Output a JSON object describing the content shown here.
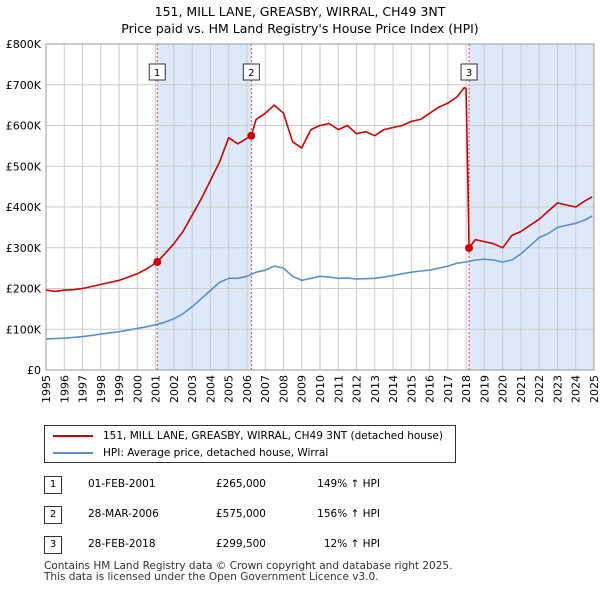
{
  "title_line1": "151, MILL LANE, GREASBY, WIRRAL, CH49 3NT",
  "title_line2": "Price paid vs. HM Land Registry's House Price Index (HPI)",
  "colors": {
    "property": "#cc0000",
    "hpi": "#5b8fcc",
    "shade": "#dde8f8",
    "grid": "#cccccc"
  },
  "chart_data": {
    "type": "line",
    "title": "Price paid vs. HM Land Registry's House Price Index (HPI)",
    "xlim": [
      1995,
      2025
    ],
    "ylim": [
      0,
      800000
    ],
    "x_ticks": [
      "1995",
      "1996",
      "1997",
      "1998",
      "1999",
      "2000",
      "2001",
      "2002",
      "2003",
      "2004",
      "2005",
      "2006",
      "2007",
      "2008",
      "2009",
      "2010",
      "2011",
      "2012",
      "2013",
      "2014",
      "2015",
      "2016",
      "2017",
      "2018",
      "2019",
      "2020",
      "2021",
      "2022",
      "2023",
      "2024",
      "2025"
    ],
    "y_ticks": [
      {
        "value": 0,
        "label": "£0"
      },
      {
        "value": 100000,
        "label": "£100K"
      },
      {
        "value": 200000,
        "label": "£200K"
      },
      {
        "value": 300000,
        "label": "£300K"
      },
      {
        "value": 400000,
        "label": "£400K"
      },
      {
        "value": 500000,
        "label": "£500K"
      },
      {
        "value": 600000,
        "label": "£600K"
      },
      {
        "value": 700000,
        "label": "£700K"
      },
      {
        "value": 800000,
        "label": "£800K"
      }
    ],
    "series": [
      {
        "name": "151, MILL LANE, GREASBY, WIRRAL, CH49 3NT (detached house)",
        "color": "#cc0000",
        "x": [
          1995.0,
          1995.5,
          1996.0,
          1996.5,
          1997.0,
          1997.5,
          1998.0,
          1998.5,
          1999.0,
          1999.5,
          2000.0,
          2000.5,
          2001.09,
          2001.5,
          2002.0,
          2002.5,
          2003.0,
          2003.5,
          2004.0,
          2004.5,
          2005.0,
          2005.5,
          2006.24,
          2006.5,
          2007.0,
          2007.5,
          2008.0,
          2008.5,
          2009.0,
          2009.5,
          2010.0,
          2010.5,
          2011.0,
          2011.5,
          2012.0,
          2012.5,
          2013.0,
          2013.5,
          2014.0,
          2014.5,
          2015.0,
          2015.5,
          2016.0,
          2016.5,
          2017.0,
          2017.5,
          2017.9,
          2018.0,
          2018.16,
          2018.5,
          2019.0,
          2019.5,
          2020.0,
          2020.5,
          2021.0,
          2021.5,
          2022.0,
          2022.5,
          2023.0,
          2023.5,
          2024.0,
          2024.5,
          2024.9
        ],
        "y": [
          196000,
          193000,
          196000,
          197000,
          200000,
          205000,
          210000,
          215000,
          220000,
          228000,
          236000,
          248000,
          265000,
          285000,
          310000,
          340000,
          380000,
          420000,
          465000,
          510000,
          570000,
          555000,
          575000,
          615000,
          630000,
          650000,
          630000,
          560000,
          545000,
          590000,
          600000,
          605000,
          590000,
          600000,
          580000,
          585000,
          575000,
          590000,
          595000,
          600000,
          610000,
          615000,
          630000,
          645000,
          655000,
          670000,
          693000,
          690000,
          299500,
          320000,
          315000,
          310000,
          300000,
          330000,
          340000,
          355000,
          370000,
          390000,
          410000,
          405000,
          400000,
          415000,
          425000
        ]
      },
      {
        "name": "HPI: Average price, detached house, Wirral",
        "color": "#5b8fcc",
        "x": [
          1995.0,
          1995.5,
          1996.0,
          1996.5,
          1997.0,
          1997.5,
          1998.0,
          1998.5,
          1999.0,
          1999.5,
          2000.0,
          2000.5,
          2001.0,
          2001.5,
          2002.0,
          2002.5,
          2003.0,
          2003.5,
          2004.0,
          2004.5,
          2005.0,
          2005.5,
          2006.0,
          2006.5,
          2007.0,
          2007.5,
          2008.0,
          2008.5,
          2009.0,
          2009.5,
          2010.0,
          2010.5,
          2011.0,
          2011.5,
          2012.0,
          2012.5,
          2013.0,
          2013.5,
          2014.0,
          2014.5,
          2015.0,
          2015.5,
          2016.0,
          2016.5,
          2017.0,
          2017.5,
          2018.0,
          2018.5,
          2019.0,
          2019.5,
          2020.0,
          2020.5,
          2021.0,
          2021.5,
          2022.0,
          2022.5,
          2023.0,
          2023.5,
          2024.0,
          2024.5,
          2024.9
        ],
        "y": [
          76000,
          77000,
          78000,
          80000,
          82000,
          85000,
          88000,
          91000,
          94000,
          98000,
          102000,
          106000,
          111000,
          117000,
          126000,
          138000,
          155000,
          175000,
          195000,
          215000,
          225000,
          225000,
          230000,
          240000,
          245000,
          255000,
          250000,
          230000,
          220000,
          225000,
          230000,
          228000,
          225000,
          226000,
          223000,
          224000,
          225000,
          228000,
          232000,
          236000,
          240000,
          243000,
          245000,
          250000,
          255000,
          262000,
          265000,
          270000,
          272000,
          270000,
          265000,
          270000,
          285000,
          305000,
          325000,
          335000,
          350000,
          355000,
          360000,
          368000,
          378000
        ]
      }
    ],
    "sales": [
      {
        "id": "1",
        "date": "01-FEB-2001",
        "x": 2001.09,
        "value": 265000,
        "price": "£265,000",
        "hpi": "149% ↑ HPI"
      },
      {
        "id": "2",
        "date": "28-MAR-2006",
        "x": 2006.24,
        "value": 575000,
        "price": "£575,000",
        "hpi": "156% ↑ HPI"
      },
      {
        "id": "3",
        "date": "28-FEB-2018",
        "x": 2018.16,
        "value": 299500,
        "price": "£299,500",
        "hpi": "12% ↑ HPI"
      }
    ]
  },
  "legend": {
    "property_label": "151, MILL LANE, GREASBY, WIRRAL, CH49 3NT (detached house)",
    "hpi_label": "HPI: Average price, detached house, Wirral"
  },
  "footer_line1": "Contains HM Land Registry data © Crown copyright and database right 2025.",
  "footer_line2": "This data is licensed under the Open Government Licence v3.0."
}
